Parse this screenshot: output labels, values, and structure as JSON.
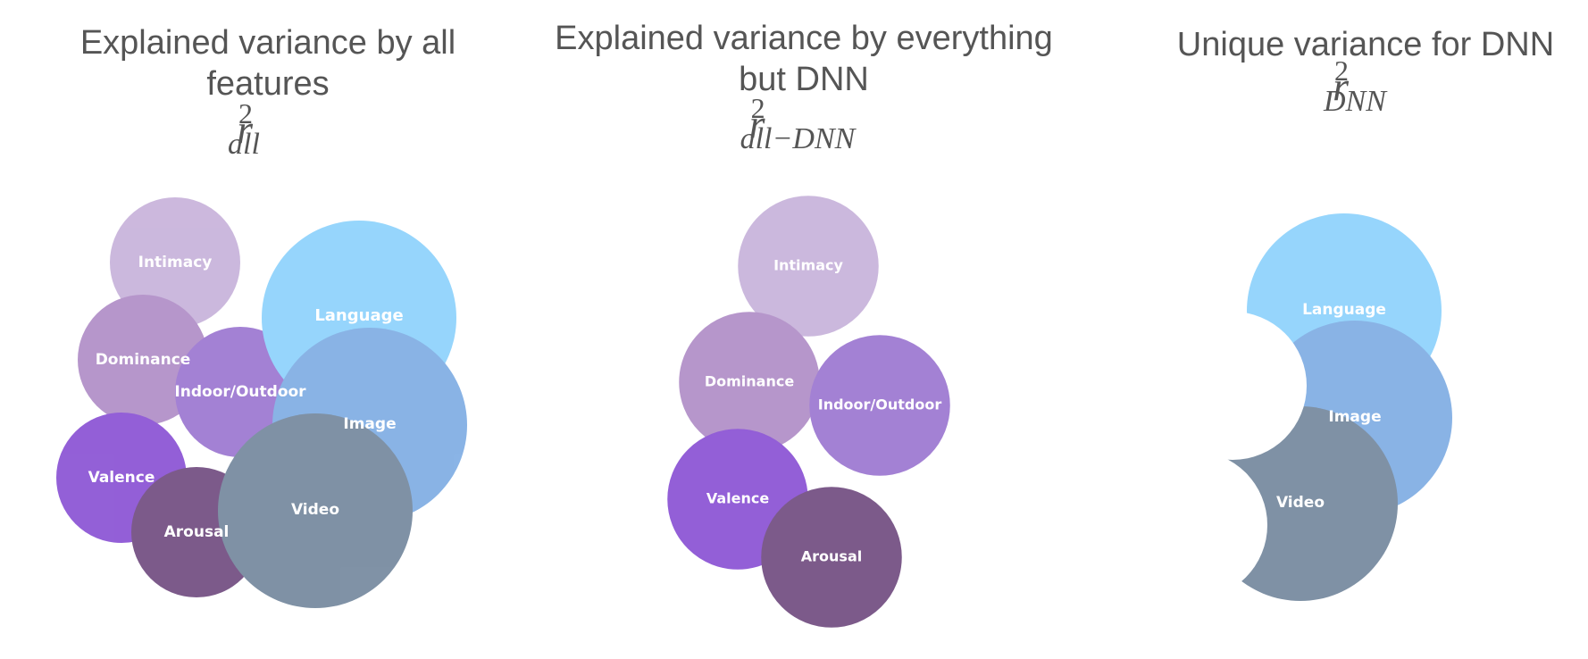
{
  "colors": {
    "intimacy": "#b89dd0",
    "dominance": "#9b6fb8",
    "indoor_outdoor": "#8152c4",
    "valence": "#6a22c8",
    "arousal": "#4a1c5e",
    "language": "#6ec6fb",
    "image": "#5d97dc",
    "video": "#4f6883"
  },
  "panels": [
    {
      "title_lines": [
        "Explained variance by all",
        "features"
      ],
      "math_base": "r",
      "math_sup": "2",
      "math_sub": "all",
      "circles": [
        {
          "key": "intimacy",
          "label": "Intimacy"
        },
        {
          "key": "dominance",
          "label": "Dominance"
        },
        {
          "key": "indoor_outdoor",
          "label": "Indoor/Outdoor"
        },
        {
          "key": "valence",
          "label": "Valence"
        },
        {
          "key": "arousal",
          "label": "Arousal"
        },
        {
          "key": "language",
          "label": "Language"
        },
        {
          "key": "image",
          "label": "Image"
        },
        {
          "key": "video",
          "label": "Video"
        }
      ]
    },
    {
      "title_lines": [
        "Explained variance by everything",
        "but DNN"
      ],
      "math_base": "r",
      "math_sup": "2",
      "math_sub": "all−DNN",
      "circles": [
        {
          "key": "intimacy",
          "label": "Intimacy"
        },
        {
          "key": "dominance",
          "label": "Dominance"
        },
        {
          "key": "indoor_outdoor",
          "label": "Indoor/Outdoor"
        },
        {
          "key": "valence",
          "label": "Valence"
        },
        {
          "key": "arousal",
          "label": "Arousal"
        }
      ]
    },
    {
      "title_lines": [
        "Unique variance for DNN"
      ],
      "math_base": "r",
      "math_sup": "2",
      "math_sub": "DNN",
      "circles": [
        {
          "key": "language",
          "label": "Language"
        },
        {
          "key": "image",
          "label": "Image"
        },
        {
          "key": "video",
          "label": "Video"
        }
      ]
    }
  ]
}
